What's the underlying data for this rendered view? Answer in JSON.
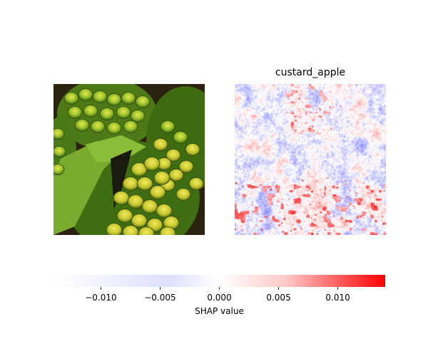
{
  "figure": {
    "left_panel": {
      "kind": "input image",
      "content": "custard apple fruits photo"
    },
    "right_panel": {
      "title": "custard_apple"
    }
  },
  "chart_data": {
    "type": "heatmap",
    "title": "custard_apple",
    "colorbar": {
      "label": "SHAP value",
      "range": [
        -0.014,
        0.014
      ],
      "ticks": [
        -0.01,
        -0.005,
        0.0,
        0.005,
        0.01
      ],
      "tick_labels": [
        "−0.010",
        "−0.005",
        "0.000",
        "0.005",
        "0.010"
      ],
      "colormap": [
        "#0000ff",
        "#ffffff",
        "#ff0000"
      ]
    }
  },
  "colors": {
    "negative": "#0000ff",
    "neutral": "#ffffff",
    "positive": "#ff0000"
  }
}
